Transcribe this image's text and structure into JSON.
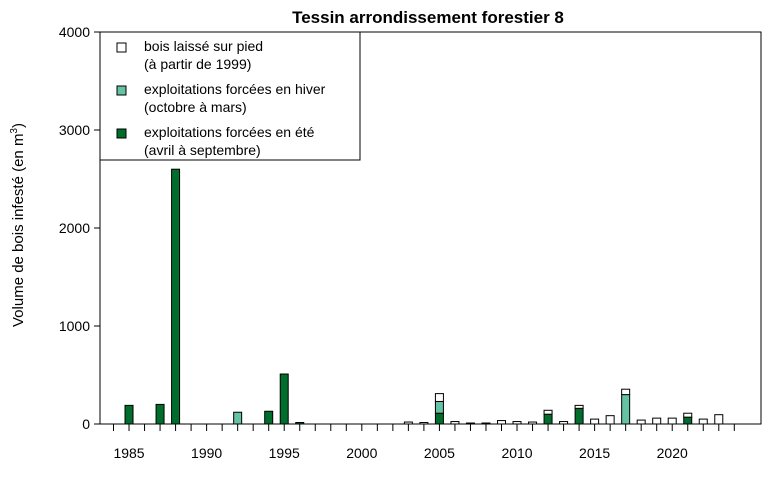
{
  "chart_data": {
    "type": "bar",
    "stacked": true,
    "title": "Tessin arrondissement forestier 8",
    "ylabel_main": "Volume de bois infesté (en m",
    "ylabel_sup": "3",
    "ylabel_close": ")",
    "xlim": [
      1983,
      2025
    ],
    "ylim": [
      0,
      4000
    ],
    "yticks": [
      0,
      1000,
      2000,
      3000,
      4000
    ],
    "xtick_labels": [
      1985,
      1990,
      1995,
      2000,
      2005,
      2010,
      2015,
      2020
    ],
    "legend_position": "top-left",
    "colors": {
      "standing": "#ffffff",
      "winter": "#66c2a4",
      "summer": "#006d2c"
    },
    "legend": [
      {
        "key": "standing",
        "line1": "bois laissé sur pied",
        "line2": "(à partir de 1999)"
      },
      {
        "key": "winter",
        "line1": "exploitations forcées en hiver",
        "line2": "(octobre à mars)"
      },
      {
        "key": "summer",
        "line1": "exploitations forcées en été",
        "line2": "(avril à septembre)"
      }
    ],
    "bars": [
      {
        "year": 1985,
        "summer": 190,
        "winter": 0,
        "standing": 0
      },
      {
        "year": 1987,
        "summer": 200,
        "winter": 0,
        "standing": 0
      },
      {
        "year": 1988,
        "summer": 2600,
        "winter": 0,
        "standing": 0
      },
      {
        "year": 1992,
        "summer": 0,
        "winter": 120,
        "standing": 0
      },
      {
        "year": 1994,
        "summer": 130,
        "winter": 0,
        "standing": 0
      },
      {
        "year": 1995,
        "summer": 510,
        "winter": 0,
        "standing": 0
      },
      {
        "year": 1996,
        "summer": 15,
        "winter": 0,
        "standing": 0
      },
      {
        "year": 2003,
        "summer": 0,
        "winter": 0,
        "standing": 20
      },
      {
        "year": 2004,
        "summer": 0,
        "winter": 0,
        "standing": 15
      },
      {
        "year": 2005,
        "summer": 110,
        "winter": 120,
        "standing": 80
      },
      {
        "year": 2006,
        "summer": 0,
        "winter": 0,
        "standing": 25
      },
      {
        "year": 2007,
        "summer": 0,
        "winter": 0,
        "standing": 10
      },
      {
        "year": 2008,
        "summer": 0,
        "winter": 0,
        "standing": 10
      },
      {
        "year": 2009,
        "summer": 0,
        "winter": 0,
        "standing": 35
      },
      {
        "year": 2010,
        "summer": 0,
        "winter": 0,
        "standing": 25
      },
      {
        "year": 2011,
        "summer": 0,
        "winter": 0,
        "standing": 20
      },
      {
        "year": 2012,
        "summer": 100,
        "winter": 0,
        "standing": 40
      },
      {
        "year": 2013,
        "summer": 0,
        "winter": 0,
        "standing": 25
      },
      {
        "year": 2014,
        "summer": 160,
        "winter": 0,
        "standing": 30
      },
      {
        "year": 2015,
        "summer": 0,
        "winter": 0,
        "standing": 50
      },
      {
        "year": 2016,
        "summer": 0,
        "winter": 0,
        "standing": 85
      },
      {
        "year": 2017,
        "summer": 0,
        "winter": 300,
        "standing": 55
      },
      {
        "year": 2018,
        "summer": 0,
        "winter": 0,
        "standing": 40
      },
      {
        "year": 2019,
        "summer": 0,
        "winter": 0,
        "standing": 60
      },
      {
        "year": 2020,
        "summer": 0,
        "winter": 0,
        "standing": 60
      },
      {
        "year": 2021,
        "summer": 70,
        "winter": 0,
        "standing": 40
      },
      {
        "year": 2022,
        "summer": 0,
        "winter": 0,
        "standing": 50
      },
      {
        "year": 2023,
        "summer": 0,
        "winter": 0,
        "standing": 95
      }
    ]
  }
}
